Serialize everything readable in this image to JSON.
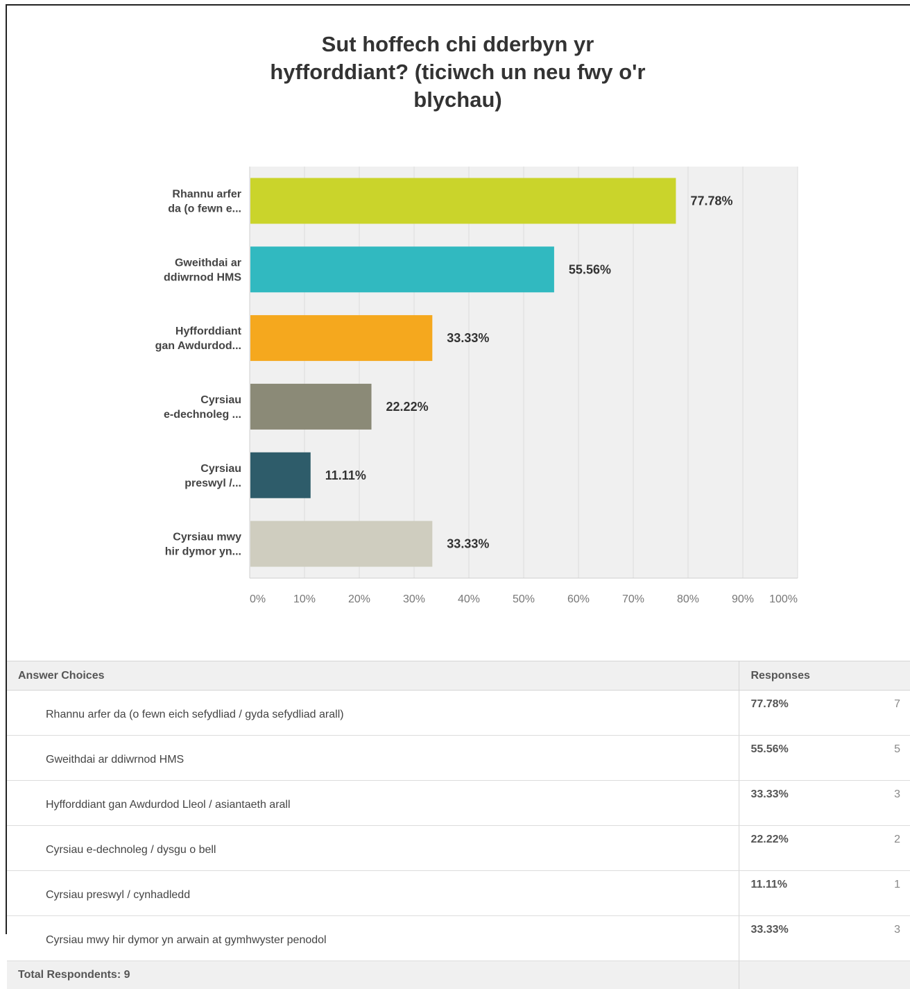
{
  "chart_data": {
    "type": "bar",
    "orientation": "horizontal",
    "title": "Sut hoffech chi dderbyn yr hyfforddiant? (ticiwch un neu fwy o'r blychau)",
    "title_lines": [
      "Sut hoffech chi dderbyn yr",
      "hyfforddiant? (ticiwch un neu fwy o'r",
      "blychau)"
    ],
    "categories": [
      [
        "Rhannu arfer",
        "da (o fewn e..."
      ],
      [
        "Gweithdai ar",
        "ddiwrnod HMS"
      ],
      [
        "Hyfforddiant",
        "gan Awdurdod..."
      ],
      [
        "Cyrsiau",
        "e-dechnoleg ..."
      ],
      [
        "Cyrsiau",
        "preswyl /..."
      ],
      [
        "Cyrsiau mwy",
        "hir dymor yn..."
      ]
    ],
    "values": [
      77.78,
      55.56,
      33.33,
      22.22,
      11.11,
      33.33
    ],
    "value_labels": [
      "77.78%",
      "55.56%",
      "33.33%",
      "22.22%",
      "11.11%",
      "33.33%"
    ],
    "colors": [
      "#cad42b",
      "#31b9c0",
      "#f5a81e",
      "#8b8a77",
      "#2e5c6a",
      "#cfcdbf"
    ],
    "xlim": [
      0,
      100
    ],
    "xticks": [
      "0%",
      "10%",
      "20%",
      "30%",
      "40%",
      "50%",
      "60%",
      "70%",
      "80%",
      "90%",
      "100%"
    ],
    "grid": true,
    "plot_background": "#f0f0f0"
  },
  "table": {
    "headers": {
      "choices": "Answer Choices",
      "responses": "Responses"
    },
    "rows": [
      {
        "choice": "Rhannu arfer da (o fewn eich sefydliad / gyda sefydliad arall)",
        "percent": "77.78%",
        "count": "7"
      },
      {
        "choice": "Gweithdai ar ddiwrnod HMS",
        "percent": "55.56%",
        "count": "5"
      },
      {
        "choice": "Hyfforddiant gan Awdurdod Lleol / asiantaeth arall",
        "percent": "33.33%",
        "count": "3"
      },
      {
        "choice": "Cyrsiau e-dechnoleg / dysgu o bell",
        "percent": "22.22%",
        "count": "2"
      },
      {
        "choice": "Cyrsiau preswyl / cynhadledd",
        "percent": "11.11%",
        "count": "1"
      },
      {
        "choice": "Cyrsiau mwy hir dymor yn arwain at gymhwyster penodol",
        "percent": "33.33%",
        "count": "3"
      }
    ],
    "total": "Total Respondents: 9"
  }
}
